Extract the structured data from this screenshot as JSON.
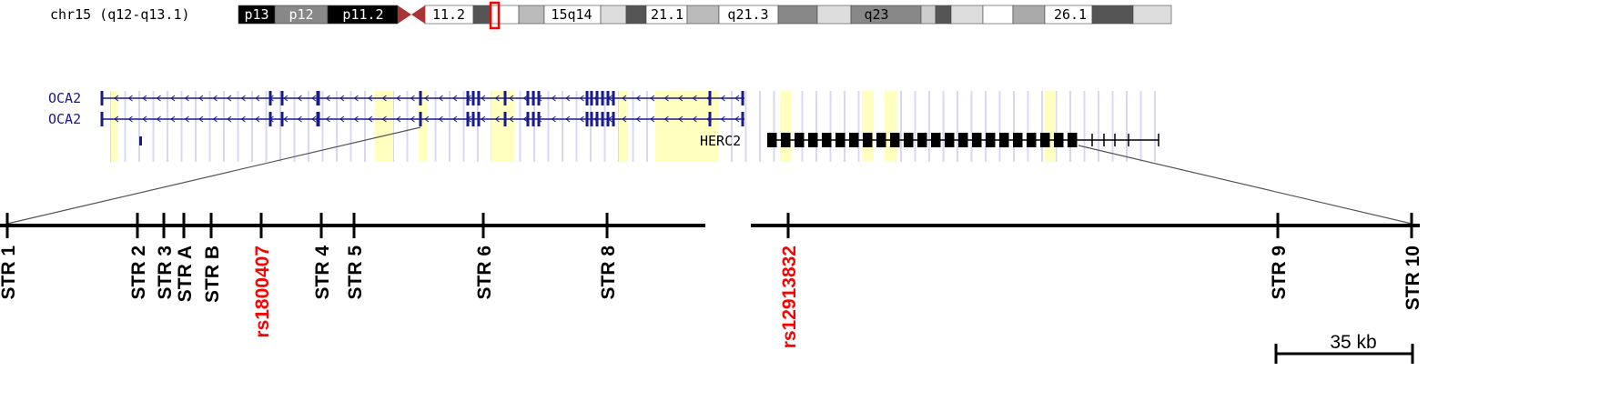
{
  "ideogram": {
    "label": "chr15 (q12-q13.1)",
    "bands": [
      "p13",
      "p12",
      "p11.2",
      "11.2",
      "15q14",
      "21.1",
      "q21.3",
      "q23",
      "26.1"
    ]
  },
  "genes": [
    "OCA2",
    "OCA2",
    "HERC2"
  ],
  "markers": [
    {
      "label": "STR 1",
      "color": "#000000"
    },
    {
      "label": "STR 2",
      "color": "#000000"
    },
    {
      "label": "STR 3",
      "color": "#000000"
    },
    {
      "label": "STR A",
      "color": "#000000"
    },
    {
      "label": "STR B",
      "color": "#000000"
    },
    {
      "label": "rs1800407",
      "color": "#ff0000"
    },
    {
      "label": "STR 4",
      "color": "#000000"
    },
    {
      "label": "STR 5",
      "color": "#000000"
    },
    {
      "label": "STR 6",
      "color": "#000000"
    },
    {
      "label": "STR 8",
      "color": "#000000"
    },
    {
      "label": "rs12913832",
      "color": "#ff0000"
    },
    {
      "label": "STR 9",
      "color": "#000000"
    },
    {
      "label": "STR 10",
      "color": "#000000"
    }
  ],
  "scale_label": "35 kb"
}
